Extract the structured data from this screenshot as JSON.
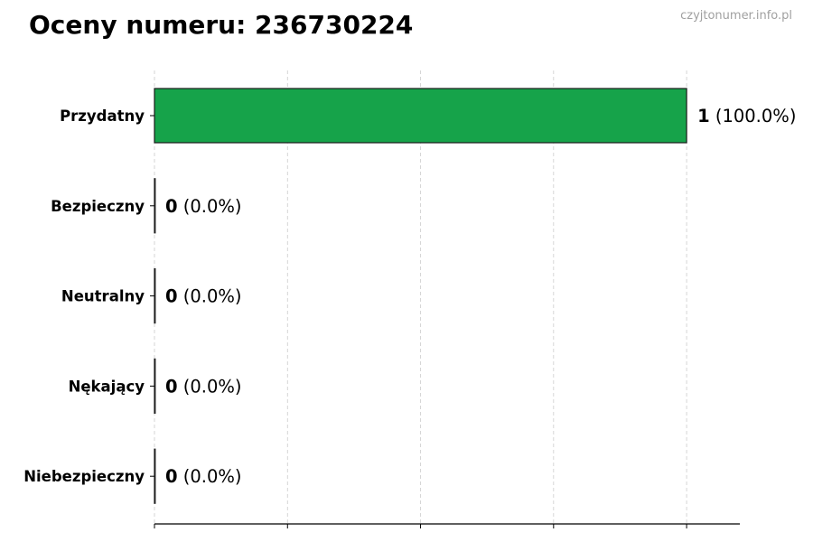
{
  "chart_data": {
    "type": "bar",
    "orientation": "horizontal",
    "title": "Oceny numeru: 236730224",
    "watermark": "czyjtonumer.info.pl",
    "categories": [
      "Przydatny",
      "Bezpieczny",
      "Neutralny",
      "Nękający",
      "Niebezpieczny"
    ],
    "values": [
      1,
      0,
      0,
      0,
      0
    ],
    "data_labels": [
      {
        "count": "1",
        "pct": "(100.0%)"
      },
      {
        "count": "0",
        "pct": "(0.0%)"
      },
      {
        "count": "0",
        "pct": "(0.0%)"
      },
      {
        "count": "0",
        "pct": "(0.0%)"
      },
      {
        "count": "0",
        "pct": "(0.0%)"
      }
    ],
    "colors": [
      "#16a34a",
      "#16a34a",
      "#16a34a",
      "#16a34a",
      "#16a34a"
    ],
    "xlim": [
      0,
      1.1
    ],
    "xticks": [
      0,
      0.25,
      0.5,
      0.75,
      1.0
    ],
    "xtick_labels_shown": false,
    "grid": "x dashed",
    "xlabel": "",
    "ylabel": ""
  }
}
